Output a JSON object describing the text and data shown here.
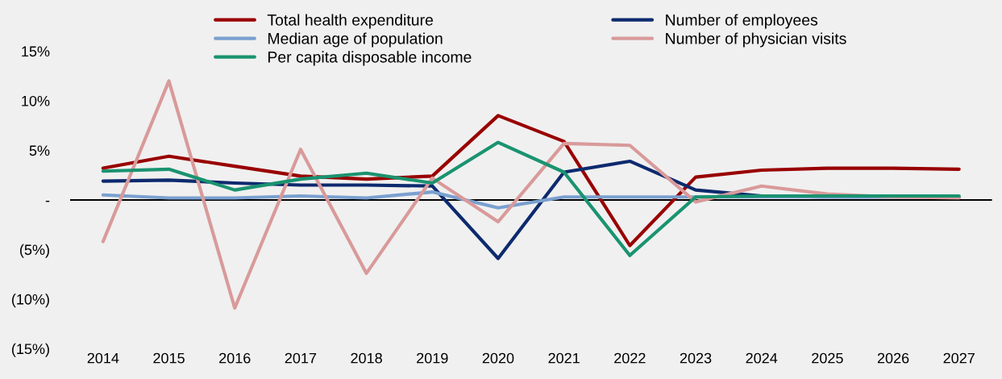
{
  "chart_data": {
    "type": "line",
    "categories": [
      "2014",
      "2015",
      "2016",
      "2017",
      "2018",
      "2019",
      "2020",
      "2021",
      "2022",
      "2023",
      "2024",
      "2025",
      "2026",
      "2027"
    ],
    "series": [
      {
        "name": "Total health expenditure",
        "color": "#990000",
        "values": [
          3.2,
          4.4,
          3.4,
          2.4,
          2.1,
          2.4,
          8.5,
          5.9,
          -4.6,
          2.3,
          3.0,
          3.2,
          3.2,
          3.1
        ]
      },
      {
        "name": "Number of employees",
        "color": "#0d2a6e",
        "values": [
          1.9,
          2.0,
          1.7,
          1.5,
          1.5,
          1.4,
          -5.9,
          2.8,
          3.9,
          1.0,
          0.4,
          0.3,
          0.3,
          0.3
        ]
      },
      {
        "name": "Median age of population",
        "color": "#7aa0cf",
        "values": [
          0.5,
          0.2,
          0.2,
          0.4,
          0.2,
          0.8,
          -0.8,
          0.3,
          0.3,
          0.3,
          0.3,
          0.3,
          0.3,
          0.3
        ]
      },
      {
        "name": "Number of physician visits",
        "color": "#d99a9a",
        "values": [
          -4.2,
          12.0,
          -10.9,
          5.1,
          -7.4,
          2.2,
          -2.2,
          5.7,
          5.5,
          -0.2,
          1.4,
          0.6,
          0.3,
          0.2
        ]
      },
      {
        "name": "Per capita disposable income",
        "color": "#1a9370",
        "values": [
          2.9,
          3.1,
          1.0,
          2.1,
          2.7,
          1.7,
          5.8,
          2.8,
          -5.6,
          0.3,
          0.4,
          0.4,
          0.4,
          0.4
        ]
      }
    ],
    "ylim": [
      -15,
      15
    ],
    "yticks": [
      {
        "value": 15,
        "label": "15%"
      },
      {
        "value": 10,
        "label": "10%"
      },
      {
        "value": 5,
        "label": "5%"
      },
      {
        "value": 0,
        "label": "-"
      },
      {
        "value": -5,
        "label": "(5%)"
      },
      {
        "value": -10,
        "label": "(10%)"
      },
      {
        "value": -15,
        "label": "(15%)"
      }
    ],
    "ref_lines": [
      {
        "axis": "y",
        "value": 0,
        "color": "#000000"
      }
    ],
    "grid": false,
    "legend": "top",
    "marker": "none",
    "line_style": "solid"
  }
}
